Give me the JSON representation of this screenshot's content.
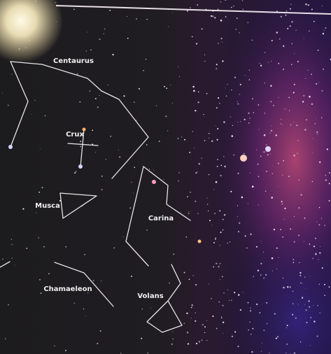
{
  "labels": [
    "Centaurus",
    "Crux",
    "Musca",
    "Carina",
    "Chamaeleon",
    "Volans"
  ]
}
